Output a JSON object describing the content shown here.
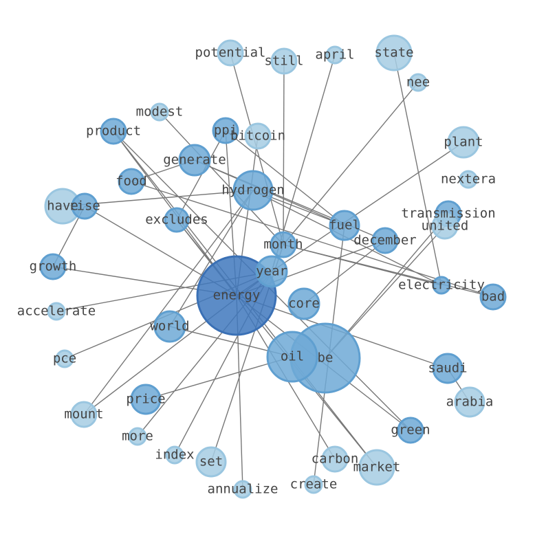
{
  "nodes": [
    {
      "label": "energy"
    },
    {
      "label": "be"
    },
    {
      "label": "oil"
    },
    {
      "label": "hydrogen"
    },
    {
      "label": "year"
    },
    {
      "label": "core"
    },
    {
      "label": "world"
    },
    {
      "label": "fuel"
    },
    {
      "label": "generate"
    },
    {
      "label": "month"
    },
    {
      "label": "december"
    },
    {
      "label": "price"
    },
    {
      "label": "saudi"
    },
    {
      "label": "arabia"
    },
    {
      "label": "green"
    },
    {
      "label": "market"
    },
    {
      "label": "carbon"
    },
    {
      "label": "set"
    },
    {
      "label": "state"
    },
    {
      "label": "plant"
    },
    {
      "label": "transmission"
    },
    {
      "label": "united"
    },
    {
      "label": "bad"
    },
    {
      "label": "electricity"
    },
    {
      "label": "have"
    },
    {
      "label": "rise"
    },
    {
      "label": "growth"
    },
    {
      "label": "food"
    },
    {
      "label": "product"
    },
    {
      "label": "ppi"
    },
    {
      "label": "bitcoin"
    },
    {
      "label": "excludes"
    },
    {
      "label": "potential"
    },
    {
      "label": "still"
    },
    {
      "label": "april"
    },
    {
      "label": "nee"
    },
    {
      "label": "nextera"
    },
    {
      "label": "modest"
    },
    {
      "label": "accelerate"
    },
    {
      "label": "pce"
    },
    {
      "label": "mount"
    },
    {
      "label": "more"
    },
    {
      "label": "index"
    },
    {
      "label": "annualize"
    },
    {
      "label": "create"
    }
  ]
}
